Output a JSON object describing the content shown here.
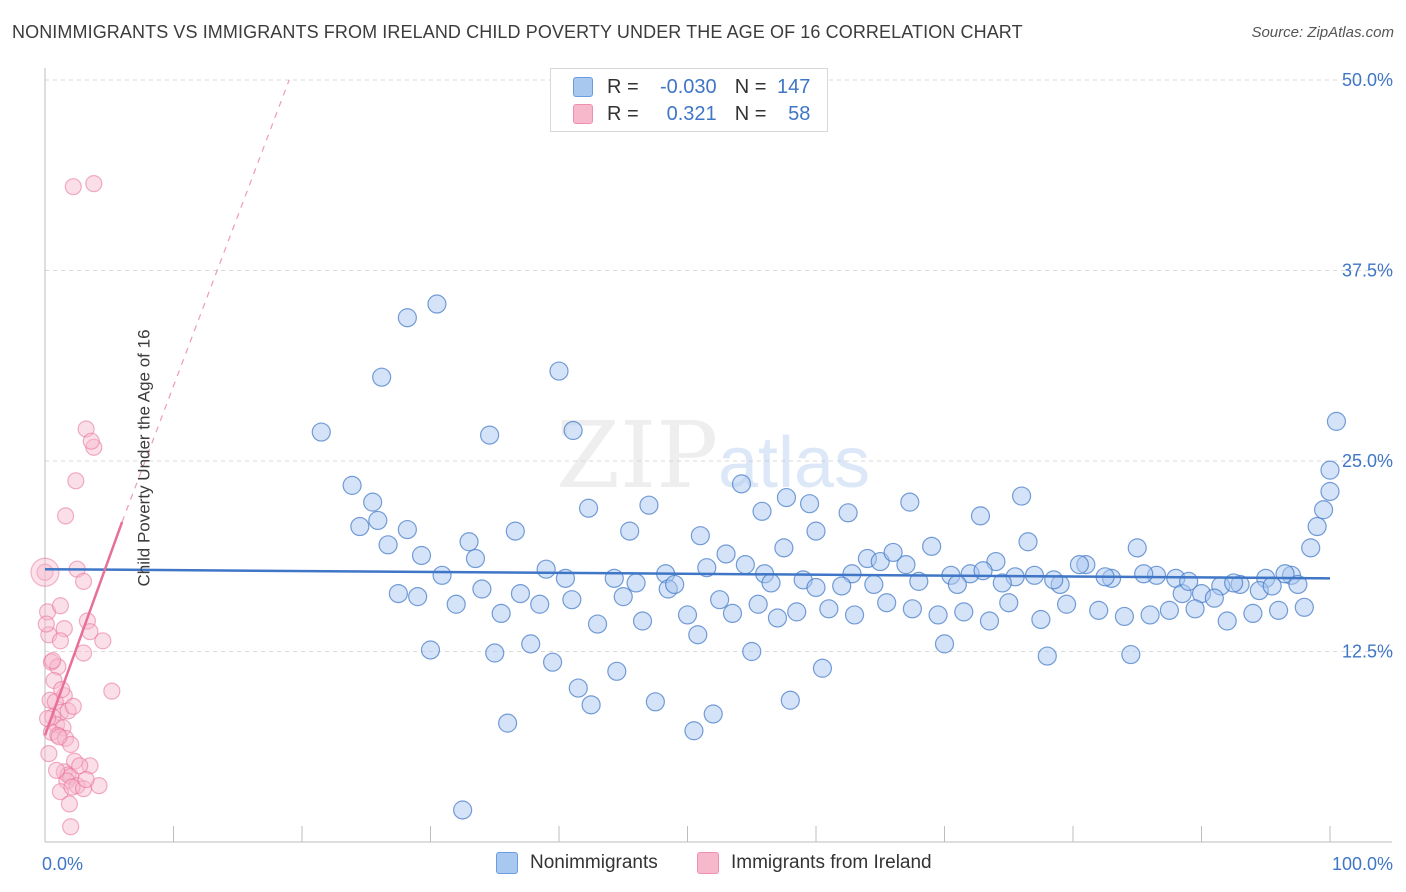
{
  "header": {
    "title": "NONIMMIGRANTS VS IMMIGRANTS FROM IRELAND CHILD POVERTY UNDER THE AGE OF 16 CORRELATION CHART",
    "source": "Source: ZipAtlas.com"
  },
  "colors": {
    "blue": "#3f76c6",
    "blue_fill": "#a9c8f0",
    "pink": "#e86f98",
    "pink_fill": "#f7b8cc",
    "grid": "#d9d9d9",
    "axis_tick_text": "#3f76c6"
  },
  "legend": {
    "row1": {
      "r_label": "R =",
      "r_value": "-0.030",
      "n_label": "N =",
      "n_value": "147"
    },
    "row2": {
      "r_label": "R =",
      "r_value": "0.321",
      "n_label": "N =",
      "n_value": "58"
    }
  },
  "watermark": {
    "part1": "ZIP",
    "part2": "atlas"
  },
  "chart_data": {
    "type": "scatter",
    "title": "NONIMMIGRANTS VS IMMIGRANTS FROM IRELAND CHILD POVERTY UNDER THE AGE OF 16 CORRELATION CHART",
    "xlabel": "",
    "ylabel": "Child Poverty Under the Age of 16",
    "xlim": [
      0,
      100
    ],
    "ylim": [
      0,
      50
    ],
    "x_tick_labels": [
      "0.0%",
      "100.0%"
    ],
    "y_ticks": [
      12.5,
      25.0,
      37.5,
      50.0
    ],
    "y_tick_labels": [
      "12.5%",
      "25.0%",
      "37.5%",
      "50.0%"
    ],
    "grid": true,
    "legend_position": "bottom",
    "series": [
      {
        "name": "Nonimmigrants",
        "color": "#3f76c6",
        "r": -0.03,
        "n": 147,
        "trend": [
          [
            0,
            17.9
          ],
          [
            100,
            17.3
          ]
        ],
        "points": [
          [
            21.5,
            26.9
          ],
          [
            26.2,
            30.5
          ],
          [
            28.2,
            34.4
          ],
          [
            30.5,
            35.3
          ],
          [
            40.0,
            30.9
          ],
          [
            34.6,
            26.7
          ],
          [
            41.1,
            27.0
          ],
          [
            23.9,
            23.4
          ],
          [
            25.9,
            21.1
          ],
          [
            26.7,
            19.5
          ],
          [
            25.5,
            22.3
          ],
          [
            28.2,
            20.5
          ],
          [
            29.3,
            18.8
          ],
          [
            30.9,
            17.5
          ],
          [
            33.0,
            19.7
          ],
          [
            36.6,
            20.4
          ],
          [
            42.3,
            21.9
          ],
          [
            47.0,
            22.1
          ],
          [
            40.5,
            17.3
          ],
          [
            44.3,
            17.3
          ],
          [
            48.3,
            17.6
          ],
          [
            51.5,
            18.0
          ],
          [
            54.5,
            18.2
          ],
          [
            56.0,
            17.6
          ],
          [
            57.5,
            19.3
          ],
          [
            59.0,
            17.2
          ],
          [
            60.0,
            20.4
          ],
          [
            62.8,
            17.6
          ],
          [
            64.0,
            18.6
          ],
          [
            65.0,
            18.4
          ],
          [
            67.0,
            18.2
          ],
          [
            69.0,
            19.4
          ],
          [
            70.5,
            17.5
          ],
          [
            72.0,
            17.6
          ],
          [
            74.0,
            18.4
          ],
          [
            75.5,
            17.4
          ],
          [
            77.0,
            17.5
          ],
          [
            79.0,
            16.9
          ],
          [
            81.0,
            18.2
          ],
          [
            83.0,
            17.3
          ],
          [
            85.0,
            19.3
          ],
          [
            86.5,
            17.5
          ],
          [
            88.0,
            17.3
          ],
          [
            90.0,
            16.3
          ],
          [
            91.5,
            16.8
          ],
          [
            93.0,
            16.9
          ],
          [
            95.0,
            17.3
          ],
          [
            97.0,
            17.5
          ],
          [
            24.5,
            20.7
          ],
          [
            27.5,
            16.3
          ],
          [
            29.0,
            16.1
          ],
          [
            32.0,
            15.6
          ],
          [
            34.0,
            16.6
          ],
          [
            35.5,
            15.0
          ],
          [
            37.0,
            16.3
          ],
          [
            38.5,
            15.6
          ],
          [
            41.0,
            15.9
          ],
          [
            43.0,
            14.3
          ],
          [
            45.0,
            16.1
          ],
          [
            46.5,
            14.5
          ],
          [
            48.5,
            16.6
          ],
          [
            50.0,
            14.9
          ],
          [
            52.5,
            15.9
          ],
          [
            53.5,
            15.0
          ],
          [
            55.5,
            15.6
          ],
          [
            57.0,
            14.7
          ],
          [
            58.5,
            15.1
          ],
          [
            61.0,
            15.3
          ],
          [
            63.0,
            14.9
          ],
          [
            65.5,
            15.7
          ],
          [
            67.5,
            15.3
          ],
          [
            69.5,
            14.9
          ],
          [
            71.5,
            15.1
          ],
          [
            73.5,
            14.5
          ],
          [
            75.0,
            15.7
          ],
          [
            77.5,
            14.6
          ],
          [
            79.5,
            15.6
          ],
          [
            82.0,
            15.2
          ],
          [
            84.0,
            14.8
          ],
          [
            86.0,
            14.9
          ],
          [
            87.5,
            15.2
          ],
          [
            89.5,
            15.3
          ],
          [
            92.0,
            14.5
          ],
          [
            94.0,
            15.0
          ],
          [
            96.0,
            15.2
          ],
          [
            98.0,
            15.4
          ],
          [
            30.0,
            12.6
          ],
          [
            37.8,
            13.0
          ],
          [
            39.5,
            11.8
          ],
          [
            44.5,
            11.2
          ],
          [
            50.8,
            13.6
          ],
          [
            55.0,
            12.5
          ],
          [
            60.5,
            11.4
          ],
          [
            70.0,
            13.0
          ],
          [
            78.0,
            12.2
          ],
          [
            84.5,
            12.3
          ],
          [
            41.5,
            10.1
          ],
          [
            42.5,
            9.0
          ],
          [
            47.5,
            9.2
          ],
          [
            52.0,
            8.4
          ],
          [
            58.0,
            9.3
          ],
          [
            36.0,
            7.8
          ],
          [
            50.5,
            7.3
          ],
          [
            32.5,
            2.1
          ],
          [
            53.0,
            18.9
          ],
          [
            66.0,
            19.0
          ],
          [
            73.0,
            17.8
          ],
          [
            76.5,
            19.7
          ],
          [
            80.5,
            18.2
          ],
          [
            88.5,
            16.3
          ],
          [
            91.0,
            16.0
          ],
          [
            94.5,
            16.5
          ],
          [
            96.5,
            17.6
          ],
          [
            98.5,
            19.3
          ],
          [
            99.0,
            20.7
          ],
          [
            99.5,
            21.8
          ],
          [
            100.0,
            23.0
          ],
          [
            100.0,
            24.4
          ],
          [
            100.5,
            27.6
          ],
          [
            33.5,
            18.6
          ],
          [
            39.0,
            17.9
          ],
          [
            46.0,
            17.0
          ],
          [
            49.0,
            16.9
          ],
          [
            56.5,
            17.0
          ],
          [
            60.0,
            16.7
          ],
          [
            62.0,
            16.8
          ],
          [
            64.5,
            16.9
          ],
          [
            68.0,
            17.1
          ],
          [
            71.0,
            16.9
          ],
          [
            74.5,
            17.0
          ],
          [
            78.5,
            17.2
          ],
          [
            82.5,
            17.4
          ],
          [
            85.5,
            17.6
          ],
          [
            89.0,
            17.1
          ],
          [
            92.5,
            17.0
          ],
          [
            95.5,
            16.8
          ],
          [
            97.5,
            16.9
          ],
          [
            35.0,
            12.4
          ],
          [
            57.7,
            22.6
          ],
          [
            59.5,
            22.2
          ],
          [
            62.5,
            21.6
          ],
          [
            67.3,
            22.3
          ],
          [
            72.8,
            21.4
          ],
          [
            76.0,
            22.7
          ],
          [
            45.5,
            20.4
          ],
          [
            54.2,
            23.5
          ],
          [
            55.8,
            21.7
          ],
          [
            51.0,
            20.1
          ]
        ]
      },
      {
        "name": "Immigrants from Ireland",
        "color": "#e86f98",
        "r": 0.321,
        "n": 58,
        "trend": [
          [
            0,
            7.0
          ],
          [
            6.0,
            21.0
          ]
        ],
        "trend_extended": [
          [
            6.0,
            21.0
          ],
          [
            19.0,
            50.0
          ]
        ],
        "points": [
          [
            2.2,
            43.0
          ],
          [
            3.8,
            43.2
          ],
          [
            3.2,
            27.1
          ],
          [
            3.8,
            25.9
          ],
          [
            3.6,
            26.3
          ],
          [
            2.4,
            23.7
          ],
          [
            1.6,
            21.4
          ],
          [
            0.0,
            17.7
          ],
          [
            2.5,
            17.9
          ],
          [
            3.0,
            17.1
          ],
          [
            0.2,
            15.1
          ],
          [
            1.2,
            15.5
          ],
          [
            1.5,
            14.0
          ],
          [
            3.3,
            14.5
          ],
          [
            0.3,
            13.6
          ],
          [
            1.2,
            13.2
          ],
          [
            3.5,
            13.8
          ],
          [
            4.5,
            13.2
          ],
          [
            3.0,
            12.4
          ],
          [
            0.5,
            11.8
          ],
          [
            1.0,
            11.5
          ],
          [
            0.7,
            10.6
          ],
          [
            5.2,
            9.9
          ],
          [
            1.5,
            9.6
          ],
          [
            0.4,
            9.3
          ],
          [
            0.8,
            9.2
          ],
          [
            1.2,
            8.5
          ],
          [
            1.8,
            8.6
          ],
          [
            0.6,
            8.2
          ],
          [
            0.9,
            7.7
          ],
          [
            1.4,
            7.5
          ],
          [
            0.5,
            7.2
          ],
          [
            1.0,
            7.0
          ],
          [
            1.6,
            6.8
          ],
          [
            2.0,
            6.4
          ],
          [
            2.3,
            5.3
          ],
          [
            1.5,
            4.6
          ],
          [
            3.5,
            5.0
          ],
          [
            1.8,
            4.4
          ],
          [
            2.0,
            4.3
          ],
          [
            1.7,
            4.0
          ],
          [
            2.5,
            3.7
          ],
          [
            1.2,
            3.3
          ],
          [
            2.1,
            3.6
          ],
          [
            3.0,
            3.5
          ],
          [
            4.2,
            3.7
          ],
          [
            2.0,
            1.0
          ],
          [
            0.6,
            11.9
          ],
          [
            1.3,
            10.0
          ],
          [
            2.2,
            8.9
          ],
          [
            0.2,
            8.1
          ],
          [
            1.1,
            6.9
          ],
          [
            2.7,
            5.0
          ],
          [
            0.9,
            4.7
          ],
          [
            3.2,
            4.1
          ],
          [
            1.9,
            2.5
          ],
          [
            0.3,
            5.8
          ],
          [
            0.1,
            14.3
          ]
        ]
      }
    ]
  }
}
